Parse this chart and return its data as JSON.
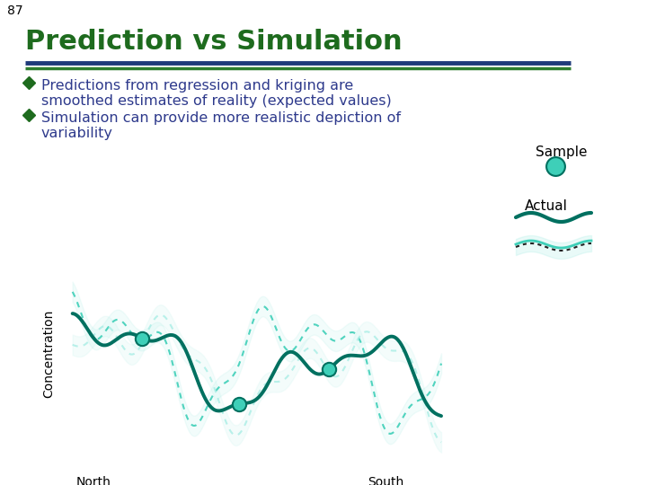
{
  "slide_number": "87",
  "title": "Prediction vs Simulation",
  "title_color": "#1E6B1E",
  "bullet_color": "#2E3A8C",
  "bullet_diamond_color": "#1E6B1E",
  "bullet1_line1": "Predictions from regression and kriging are",
  "bullet1_line2": "smoothed estimates of reality (expected values)",
  "bullet2_line1": "Simulation can provide more realistic depiction of",
  "bullet2_line2": "variability",
  "sample_label": "Sample",
  "actual_label": "Actual",
  "xlabel_left": "North",
  "xlabel_right": "South",
  "ylabel": "Concentration",
  "dark_teal": "#007060",
  "light_teal": "#3ECFB8",
  "very_light_teal": "#A8EDE5",
  "sim_dotted_dark": "#333333",
  "background": "#FFFFFF",
  "header_line_blue": "#1F3A7A",
  "header_line_green": "#2E7D2E"
}
